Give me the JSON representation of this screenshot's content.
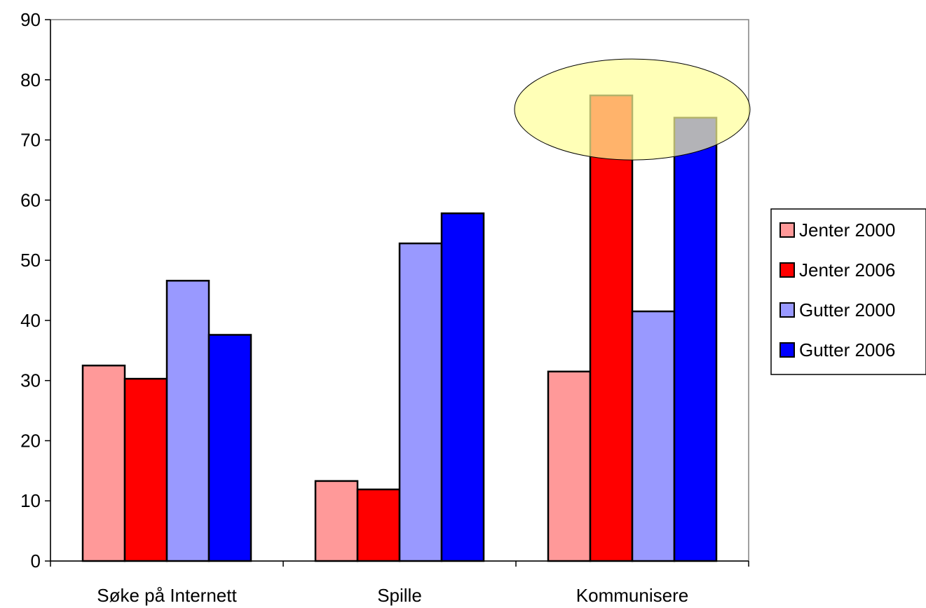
{
  "chart_data": {
    "type": "bar",
    "categories": [
      "Søke på Internett",
      "Spille",
      "Kommunisere"
    ],
    "series": [
      {
        "name": "Jenter 2000",
        "color": "#ff9999",
        "values": [
          32.5,
          13.3,
          31.5
        ]
      },
      {
        "name": "Jenter 2006",
        "color": "#ff0000",
        "values": [
          30.3,
          11.9,
          77.4
        ]
      },
      {
        "name": "Gutter 2000",
        "color": "#9999ff",
        "values": [
          46.6,
          52.8,
          41.5
        ]
      },
      {
        "name": "Gutter 2006",
        "color": "#0000ff",
        "values": [
          37.6,
          57.8,
          73.7
        ]
      }
    ],
    "yticks": [
      "0",
      "10",
      "20",
      "30",
      "40",
      "50",
      "60",
      "70",
      "80",
      "90"
    ],
    "ylim": [
      0,
      90
    ],
    "grid": false,
    "legend_position": "right",
    "highlight": {
      "category": "Kommunisere",
      "color": "#ffff99"
    }
  }
}
